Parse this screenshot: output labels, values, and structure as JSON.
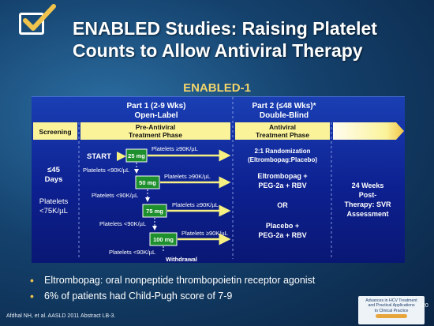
{
  "slide": {
    "title_line1": "ENABLED Studies: Raising Platelet",
    "title_line2": "Counts to Allow Antiviral Therapy",
    "page_number": "20",
    "citation": "Afdhal NH, et al. AASLD 2011 Abstract LB-3.",
    "logo_text": [
      "Advances in HCV Treatment",
      "and Practical Applications",
      "to Clinical Practice"
    ]
  },
  "diagram": {
    "title": "ENABLED-1",
    "part1_line1": "Part 1 (2-9 Wks)",
    "part1_line2": "Open-Label",
    "part2_line1": "Part 2 (≤48 Wks)*",
    "part2_line2": "Double-Blind",
    "screening": "Screening",
    "preantiviral_line1": "Pre-Antiviral",
    "preantiviral_line2": "Treatment Phase",
    "antiviral_line1": "Antiviral",
    "antiviral_line2": "Treatment Phase",
    "days_line1": "≤45",
    "days_line2": "Days",
    "platelets_line1": "Platelets",
    "platelets_line2": "<75K/µL",
    "start": "START",
    "doses": [
      "25 mg",
      "50 mg",
      "75 mg",
      "100 mg"
    ],
    "platelets_high": "Platelets ≥90K/µL",
    "platelets_low": "Platelets <90K/µL",
    "withdrawal": "Withdrawal",
    "randomization_line1": "2:1 Randomization",
    "randomization_line2": "(Eltrombopag:Placebo)",
    "arm1_line1": "Eltrombopag +",
    "arm1_line2": "PEG-2a + RBV",
    "or_text": "OR",
    "arm2_line1": "Placebo +",
    "arm2_line2": "PEG-2a + RBV",
    "followup_line1": "24 Weeks",
    "followup_line2": "Post-",
    "followup_line3": "Therapy: SVR",
    "followup_line4": "Assessment"
  },
  "bullets": [
    "Eltrombopag: oral nonpeptide thrombopoietin receptor agonist",
    "6% of patients had Child-Pugh score of 7-9"
  ],
  "colors": {
    "title_gold": "#f2d46a",
    "dose_box_green": "#1d8f2c",
    "arrow_yellow": "#f6f082",
    "phase_header_yellow": "#fbf39a"
  }
}
